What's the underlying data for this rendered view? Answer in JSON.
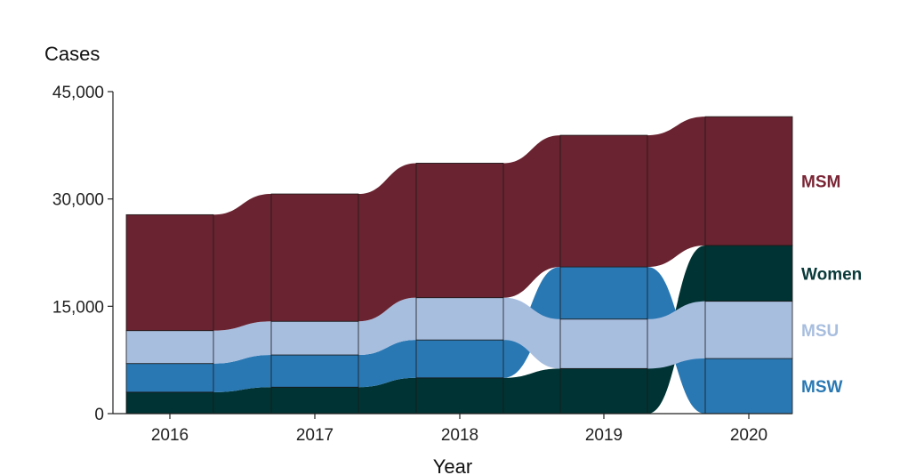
{
  "chart_data": {
    "type": "area",
    "subtype": "stacked-alluvial",
    "title": "",
    "xlabel": "Year",
    "ylabel": "Cases",
    "categories": [
      "2016",
      "2017",
      "2018",
      "2019",
      "2020"
    ],
    "ylim": [
      0,
      45000
    ],
    "yticks": [
      0,
      15000,
      30000,
      45000
    ],
    "ytick_labels": [
      "0",
      "15,000",
      "30,000",
      "45,000"
    ],
    "grid": false,
    "legend": "direct labels at right",
    "stack_order_bottom_to_top": {
      "2016": [
        "Women",
        "MSW",
        "MSU",
        "MSM"
      ],
      "2017": [
        "Women",
        "MSW",
        "MSU",
        "MSM"
      ],
      "2018": [
        "Women",
        "MSW",
        "MSU",
        "MSM"
      ],
      "2019": [
        "Women",
        "MSU",
        "MSW",
        "MSM"
      ],
      "2020": [
        "MSW",
        "MSU",
        "Women",
        "MSM"
      ]
    },
    "series": [
      {
        "name": "Women",
        "color": "#003333",
        "values": [
          3000,
          3700,
          5000,
          6300,
          7800
        ]
      },
      {
        "name": "MSW",
        "color": "#2a78b3",
        "values": [
          4000,
          4500,
          5300,
          7300,
          7700
        ]
      },
      {
        "name": "MSU",
        "color": "#a8bedf",
        "values": [
          4600,
          4700,
          5900,
          6900,
          8000
        ]
      },
      {
        "name": "MSM",
        "color": "#6a2330",
        "values": [
          16200,
          17800,
          18800,
          18400,
          18000
        ]
      }
    ],
    "series_labels": [
      {
        "name": "MSM",
        "text": "MSM",
        "color": "#7a2535"
      },
      {
        "name": "Women",
        "text": "Women",
        "color": "#0a3a3a"
      },
      {
        "name": "MSU",
        "text": "MSU",
        "color": "#a8bedf"
      },
      {
        "name": "MSW",
        "text": "MSW",
        "color": "#2a78b3"
      }
    ]
  }
}
